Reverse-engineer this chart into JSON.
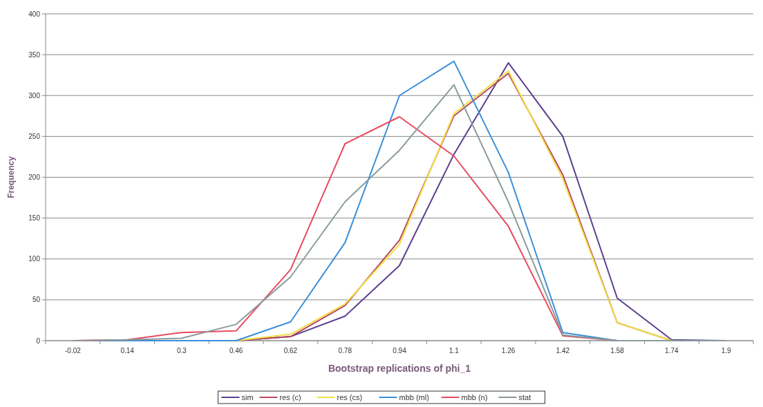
{
  "chart_data": {
    "type": "line",
    "xlabel": "Bootstrap replications of phi_1",
    "ylabel": "Frequency",
    "categories": [
      "-0.02",
      "0.14",
      "0.3",
      "0.46",
      "0.62",
      "0.78",
      "0.94",
      "1.1",
      "1.26",
      "1.42",
      "1.58",
      "1.74",
      "1.9"
    ],
    "series": [
      {
        "name": "sim",
        "color": "#5b3f8f",
        "values": [
          0,
          0,
          0,
          0,
          5,
          30,
          92,
          228,
          340,
          250,
          52,
          1,
          0
        ]
      },
      {
        "name": "res (c)",
        "color": "#b8485e",
        "values": [
          0,
          0,
          0,
          0,
          5,
          43,
          123,
          275,
          327,
          203,
          22,
          0,
          0
        ]
      },
      {
        "name": "res (cs)",
        "color": "#f2df45",
        "values": [
          null,
          null,
          0,
          0,
          8,
          45,
          118,
          278,
          330,
          198,
          22,
          0,
          0
        ]
      },
      {
        "name": "mbb (ml)",
        "color": "#3a8fd8",
        "values": [
          0,
          0,
          0,
          0,
          23,
          120,
          300,
          342,
          206,
          10,
          0,
          0,
          0
        ]
      },
      {
        "name": "mbb (n)",
        "color": "#e84a5f",
        "values": [
          0,
          1,
          10,
          12,
          87,
          241,
          274,
          226,
          140,
          6,
          0,
          0,
          0
        ]
      },
      {
        "name": "stat",
        "color": "#8a9a9a",
        "values": [
          0,
          1,
          3,
          20,
          78,
          170,
          233,
          313,
          170,
          7,
          0,
          0,
          0
        ]
      }
    ],
    "ylim": [
      0,
      400
    ],
    "yticks": [
      0,
      50,
      100,
      150,
      200,
      250,
      300,
      350,
      400
    ],
    "grid": "y",
    "legend": "bottom",
    "marker": "none",
    "line_style": "solid"
  }
}
